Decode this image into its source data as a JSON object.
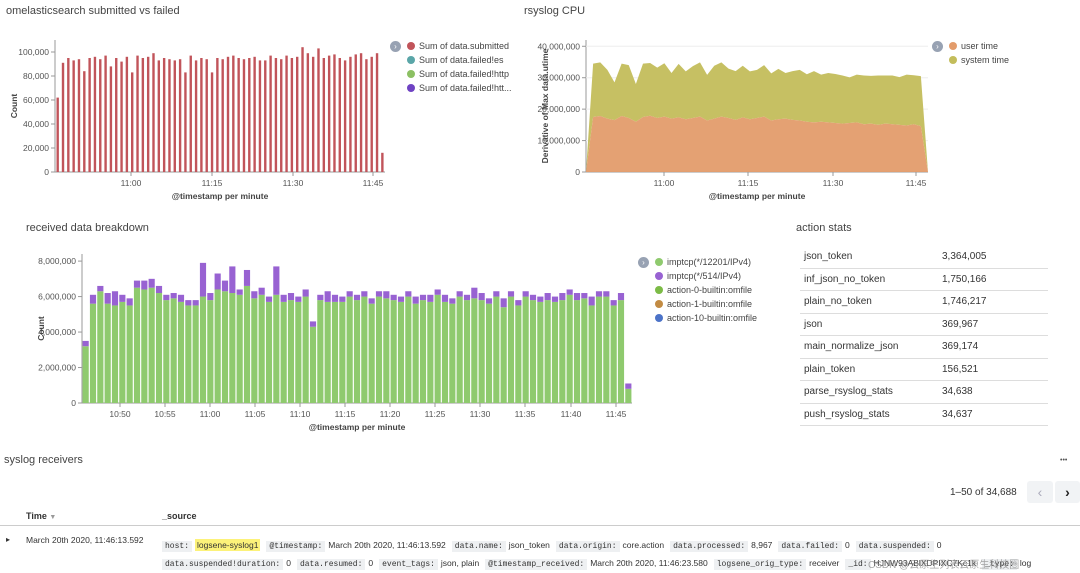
{
  "panels": {
    "chart1_title": "omelasticsearch submitted vs failed",
    "chart2_title": "rsyslog CPU",
    "chart3_title": "received data breakdown",
    "stats_title": "action stats",
    "receivers_title": "syslog receivers"
  },
  "icons": {
    "legend_toggle": "chevron-right-icon",
    "more": "more-dots-icon",
    "expand": "caret-right-icon"
  },
  "colors": {
    "submitted": "#c1545a",
    "failed_es": "#5aa6a8",
    "failed_http": "#8cc063",
    "failed_htt": "#6f43c3",
    "user_time": "#e39c6b",
    "system_time": "#c3bd5b",
    "imptcp_12201": "#8fca6e",
    "imptcp_514": "#9862d2",
    "action0": "#7cbb46",
    "action1": "#c28b43",
    "action10": "#4c73c8"
  },
  "chart_data": [
    {
      "type": "bar",
      "title": "omelasticsearch submitted vs failed",
      "xlabel": "@timestamp per minute",
      "ylabel": "Count",
      "ylim": [
        0,
        110000
      ],
      "yticks": [
        0,
        20000,
        40000,
        60000,
        80000,
        100000
      ],
      "ytick_labels": [
        "0",
        "20,000",
        "40,000",
        "60,000",
        "80,000",
        "100,000"
      ],
      "xtick_labels": [
        "11:00",
        "11:15",
        "11:30",
        "11:45"
      ],
      "legend_position": "right",
      "grid": false,
      "series": [
        {
          "name": "Sum of data.submitted",
          "color": "#c1545a",
          "values": [
            62000,
            91000,
            95000,
            93000,
            94000,
            84000,
            95000,
            96000,
            94000,
            97000,
            88000,
            95000,
            92000,
            96000,
            83000,
            97000,
            95000,
            96000,
            99000,
            93000,
            95000,
            94000,
            93000,
            94000,
            83000,
            97000,
            93000,
            95000,
            94000,
            83000,
            95000,
            94000,
            96000,
            97000,
            95000,
            94000,
            95000,
            96000,
            93000,
            93000,
            97000,
            95000,
            94000,
            97000,
            95000,
            96000,
            104000,
            99000,
            96000,
            103000,
            95000,
            97000,
            98000,
            95000,
            93000,
            96000,
            98000,
            99000,
            94000,
            96000,
            99000,
            16000
          ]
        },
        {
          "name": "Sum of data.failed!es",
          "color": "#5aa6a8",
          "values": []
        },
        {
          "name": "Sum of data.failed!http",
          "color": "#8cc063",
          "values": []
        },
        {
          "name": "Sum of data.failed!htt...",
          "color": "#6f43c3",
          "values": []
        }
      ]
    },
    {
      "type": "area",
      "title": "rsyslog CPU",
      "xlabel": "@timestamp per minute",
      "ylabel": "Derivative of Max data.utime",
      "ylim": [
        0,
        42000000
      ],
      "yticks": [
        0,
        10000000,
        20000000,
        30000000,
        40000000
      ],
      "ytick_labels": [
        "0",
        "10,000,000",
        "20,000,000",
        "30,000,000",
        "40,000,000"
      ],
      "xtick_labels": [
        "11:00",
        "11:15",
        "11:30",
        "11:45"
      ],
      "legend_position": "right",
      "stacked": true,
      "series": [
        {
          "name": "user time",
          "color": "#e39c6b",
          "values": [
            0,
            17500000,
            17800000,
            17000000,
            16500000,
            17800000,
            17200000,
            16000000,
            17500000,
            17900000,
            17200000,
            17600000,
            17000000,
            17400000,
            16800000,
            17200000,
            17600000,
            16400000,
            17000000,
            17600000,
            17200000,
            16600000,
            17400000,
            16800000,
            17200000,
            17600000,
            16400000,
            16800000,
            17000000,
            16600000,
            16400000,
            16000000,
            15800000,
            16000000,
            15800000,
            15600000,
            15400000,
            15600000,
            15800000,
            15200000,
            15400000,
            15000000,
            15400000,
            15200000,
            15000000,
            14800000,
            15200000,
            14600000,
            0
          ]
        },
        {
          "name": "system time",
          "color": "#c3bd5b",
          "values": [
            0,
            17000000,
            17100000,
            15500000,
            12000000,
            16700000,
            16800000,
            12000000,
            17000000,
            16800000,
            16000000,
            17000000,
            14500000,
            17000000,
            15200000,
            16500000,
            17300000,
            14500000,
            16800000,
            17300000,
            15700000,
            15500000,
            16400000,
            15200000,
            15300000,
            16400000,
            15000000,
            16000000,
            14500000,
            15500000,
            16100000,
            15100000,
            16300000,
            15000000,
            15700000,
            15600000,
            15300000,
            14500000,
            15200000,
            15500000,
            15200000,
            15700000,
            15300000,
            15500000,
            15200000,
            16200000,
            15600000,
            15900000,
            0
          ]
        }
      ]
    },
    {
      "type": "bar",
      "stacked": true,
      "title": "received data breakdown",
      "xlabel": "@timestamp per minute",
      "ylabel": "Count",
      "ylim": [
        0,
        8400000
      ],
      "yticks": [
        0,
        2000000,
        4000000,
        6000000,
        8000000
      ],
      "ytick_labels": [
        "0",
        "2,000,000",
        "4,000,000",
        "6,000,000",
        "8,000,000"
      ],
      "xtick_labels": [
        "10:50",
        "10:55",
        "11:00",
        "11:05",
        "11:10",
        "11:15",
        "11:20",
        "11:25",
        "11:30",
        "11:35",
        "11:40",
        "11:45"
      ],
      "legend_position": "right",
      "series": [
        {
          "name": "imptcp(*/12201/IPv4)",
          "color": "#8fca6e",
          "values": [
            3200000,
            5600000,
            6300000,
            5600000,
            5500000,
            5700000,
            5500000,
            6500000,
            6400000,
            6500000,
            6200000,
            5800000,
            5900000,
            5700000,
            5500000,
            5500000,
            6000000,
            5800000,
            6400000,
            6300000,
            6200000,
            6100000,
            6600000,
            5900000,
            6100000,
            5700000,
            6100000,
            5700000,
            5800000,
            5700000,
            6000000,
            4300000,
            5800000,
            5700000,
            5700000,
            5700000,
            6000000,
            5800000,
            6000000,
            5600000,
            6000000,
            5900000,
            5800000,
            5700000,
            6000000,
            5600000,
            5800000,
            5700000,
            6100000,
            5700000,
            5600000,
            6000000,
            5800000,
            5900000,
            5800000,
            5600000,
            6000000,
            5400000,
            6000000,
            5500000,
            6000000,
            5800000,
            5700000,
            5800000,
            5700000,
            5800000,
            6100000,
            5800000,
            5900000,
            5500000,
            6000000,
            6000000,
            5500000,
            5800000,
            800000
          ]
        },
        {
          "name": "imptcp(*/514/IPv4)",
          "color": "#9862d2",
          "values": [
            300000,
            500000,
            300000,
            600000,
            800000,
            400000,
            400000,
            400000,
            500000,
            500000,
            400000,
            300000,
            300000,
            400000,
            300000,
            300000,
            1900000,
            400000,
            900000,
            600000,
            1500000,
            300000,
            900000,
            400000,
            400000,
            300000,
            1600000,
            400000,
            400000,
            300000,
            400000,
            300000,
            300000,
            600000,
            400000,
            300000,
            300000,
            300000,
            300000,
            300000,
            300000,
            400000,
            300000,
            300000,
            300000,
            400000,
            300000,
            400000,
            300000,
            400000,
            300000,
            300000,
            300000,
            600000,
            400000,
            300000,
            300000,
            500000,
            300000,
            300000,
            300000,
            300000,
            300000,
            400000,
            300000,
            400000,
            300000,
            400000,
            300000,
            500000,
            300000,
            300000,
            300000,
            400000,
            300000
          ]
        },
        {
          "name": "action-0-builtin:omfile",
          "color": "#7cbb46",
          "values": []
        },
        {
          "name": "action-1-builtin:omfile",
          "color": "#c28b43",
          "values": []
        },
        {
          "name": "action-10-builtin:omfile",
          "color": "#4c73c8",
          "values": []
        }
      ]
    }
  ],
  "stats": [
    {
      "name": "json_token",
      "value": "3,364,005"
    },
    {
      "name": "inf_json_no_token",
      "value": "1,750,166"
    },
    {
      "name": "plain_no_token",
      "value": "1,746,217"
    },
    {
      "name": "json",
      "value": "369,967"
    },
    {
      "name": "main_normalize_json",
      "value": "369,174"
    },
    {
      "name": "plain_token",
      "value": "156,521"
    },
    {
      "name": "parse_rsyslog_stats",
      "value": "34,638"
    },
    {
      "name": "push_rsyslog_stats",
      "value": "34,637"
    }
  ],
  "receivers": {
    "more_label": "•••",
    "pagination": "1–50 of 34,688",
    "col_time": "Time",
    "col_source": "_source",
    "row_time": "March 20th 2020, 11:46:13.592",
    "line1": [
      {
        "k": "host:",
        "v": "logsene-syslog1",
        "hl": true
      },
      {
        "k": "@timestamp:",
        "v": "March 20th 2020, 11:46:13.592"
      },
      {
        "k": "data.name:",
        "v": "json_token"
      },
      {
        "k": "data.origin:",
        "v": "core.action"
      },
      {
        "k": "data.processed:",
        "v": "8,967"
      },
      {
        "k": "data.failed:",
        "v": "0"
      },
      {
        "k": "data.suspended:",
        "v": "0"
      }
    ],
    "line2": [
      {
        "k": "data.suspended!duration:",
        "v": "0"
      },
      {
        "k": "data.resumed:",
        "v": "0"
      },
      {
        "k": "event_tags:",
        "v": "json, plain"
      },
      {
        "k": "@timestamp_received:",
        "v": "March 20th 2020, 11:46:23.580"
      },
      {
        "k": "logsene_orig_type:",
        "v": "receiver"
      },
      {
        "k": "_id:",
        "v": "HJNW93ABlXDPIXC7Kc1k"
      },
      {
        "k": "_type:",
        "v": "log"
      }
    ],
    "watermark": "CSDN @云原生列表云原生科技圈"
  }
}
